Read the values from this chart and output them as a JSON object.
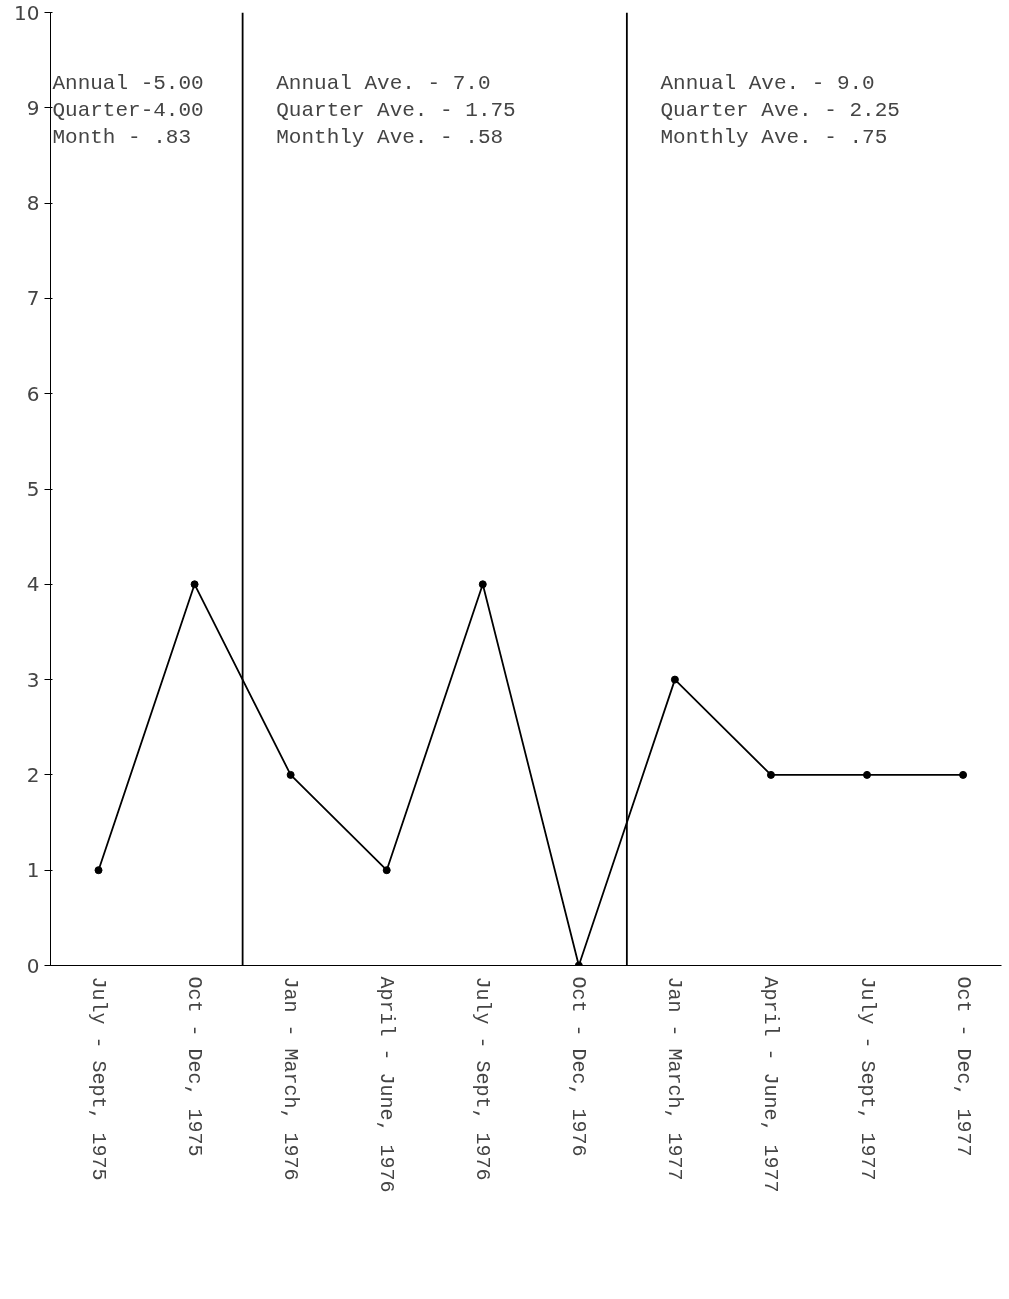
{
  "chart_data": {
    "type": "line",
    "categories": [
      "July - Sept, 1975",
      "Oct - Dec, 1975",
      "Jan - March, 1976",
      "April - June, 1976",
      "July - Sept, 1976",
      "Oct - Dec, 1976",
      "Jan - March, 1977",
      "April - June, 1977",
      "July - Sept, 1977",
      "Oct - Dec, 1977"
    ],
    "series": [
      {
        "color": "#000000",
        "values": [
          1,
          4,
          2,
          1,
          4,
          0,
          3,
          2,
          2,
          2
        ]
      }
    ],
    "ylim": [
      0,
      10
    ],
    "yticks": [
      0,
      1,
      2,
      3,
      4,
      5,
      6,
      7,
      8,
      9,
      10
    ],
    "marker": "circle",
    "line_style": "solid",
    "grid": false,
    "annotations": [
      "Annual -5.00",
      "Quarter-4.00",
      "Month  - .83",
      "Annual Ave. -  7.0",
      "Quarter Ave. - 1.75",
      "Monthly Ave. -  .58",
      "Annual Ave. -  9.0",
      "Quarter Ave. - 2.25",
      "Monthly Ave. -  .75"
    ]
  }
}
